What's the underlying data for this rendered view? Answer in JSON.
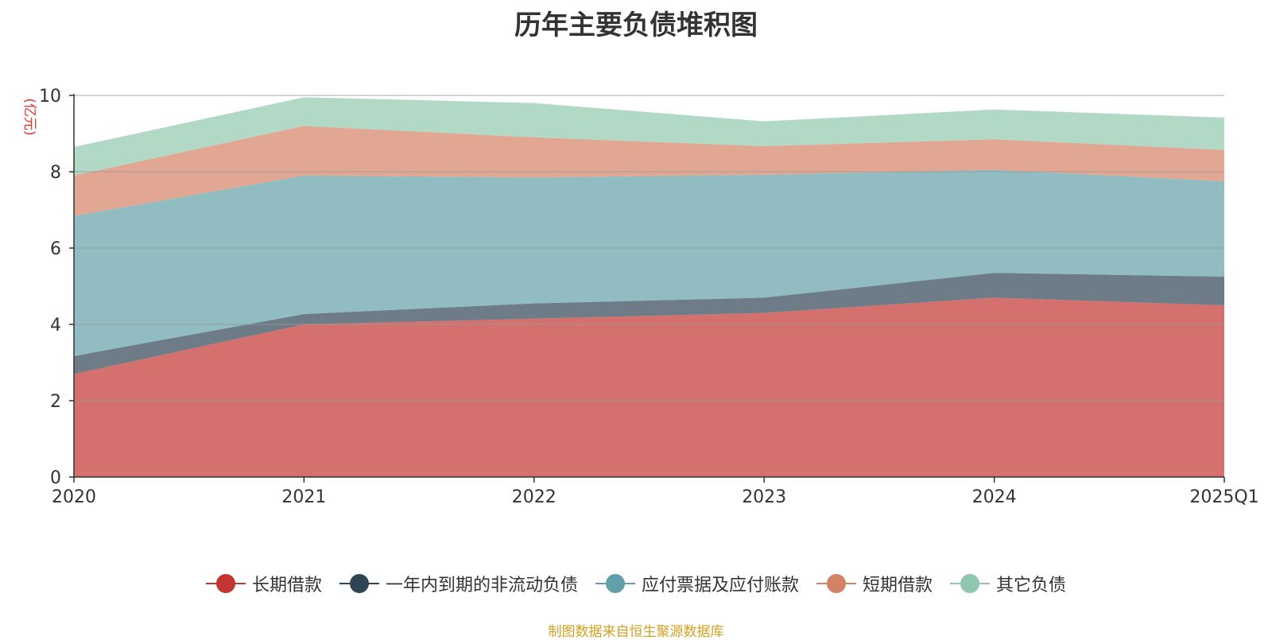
{
  "chart_data": {
    "type": "area",
    "stacked": true,
    "title": "历年主要负债堆积图",
    "ylabel": "(亿元)",
    "xlabel": "",
    "categories": [
      "2020",
      "2021",
      "2022",
      "2023",
      "2024",
      "2025Q1"
    ],
    "ylim": [
      0,
      10
    ],
    "yticks": [
      0,
      2,
      4,
      6,
      8,
      10
    ],
    "grid": true,
    "legend_position": "bottom",
    "series": [
      {
        "name": "长期借款",
        "color": "#c23531",
        "values": [
          2.7,
          4.0,
          4.15,
          4.3,
          4.7,
          4.5
        ]
      },
      {
        "name": "一年内到期的非流动负债",
        "color": "#2f4554",
        "values": [
          0.47,
          0.27,
          0.4,
          0.4,
          0.65,
          0.75
        ]
      },
      {
        "name": "应付票据及应付账款",
        "color": "#61a0a8",
        "values": [
          3.67,
          3.63,
          3.3,
          3.22,
          2.7,
          2.5
        ]
      },
      {
        "name": "短期借款",
        "color": "#d48265",
        "values": [
          1.06,
          1.3,
          1.05,
          0.75,
          0.8,
          0.82
        ]
      },
      {
        "name": "其它负债",
        "color": "#91c7ae",
        "values": [
          0.75,
          0.75,
          0.9,
          0.65,
          0.78,
          0.85
        ]
      }
    ],
    "source_note": "制图数据来自恒生聚源数据库"
  }
}
